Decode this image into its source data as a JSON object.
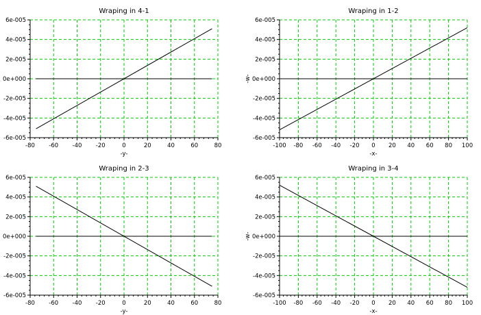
{
  "chart_data": [
    {
      "type": "line",
      "title": "Wraping in 4-1",
      "xlabel": "-y-",
      "ylabel": "",
      "xlim": [
        -80,
        80
      ],
      "ylim": [
        -6e-05,
        6e-05
      ],
      "xticks": [
        -80,
        -60,
        -40,
        -20,
        0,
        20,
        40,
        60,
        80
      ],
      "xtick_labels": [
        "-80",
        "-60",
        "-40",
        "-20",
        "0",
        "20",
        "40",
        "60",
        "80"
      ],
      "yticks": [
        -6e-05,
        -4e-05,
        -2e-05,
        0,
        2e-05,
        4e-05,
        6e-05
      ],
      "ytick_labels": [
        "-6e-005",
        "-4e-005",
        "-2e-005",
        "0e+000",
        "2e-005",
        "4e-005",
        "6e-005"
      ],
      "grid": true,
      "grid_color": "#00cc00",
      "series": [
        {
          "x": [
            -75,
            75
          ],
          "y": [
            -5.1e-05,
            5.1e-05
          ],
          "color": "#000000"
        },
        {
          "x": [
            -75,
            75
          ],
          "y": [
            0,
            0
          ],
          "color": "#000000"
        }
      ]
    },
    {
      "type": "line",
      "title": "Wraping in 1-2",
      "xlabel": "-x-",
      "ylabel": "-w-",
      "xlim": [
        -100,
        100
      ],
      "ylim": [
        -6e-05,
        6e-05
      ],
      "xticks": [
        -100,
        -80,
        -60,
        -40,
        -20,
        0,
        20,
        40,
        60,
        80,
        100
      ],
      "xtick_labels": [
        "-100",
        "-80",
        "-60",
        "-40",
        "-20",
        "0",
        "20",
        "40",
        "60",
        "80",
        "100"
      ],
      "yticks": [
        -6e-05,
        -4e-05,
        -2e-05,
        0,
        2e-05,
        4e-05,
        6e-05
      ],
      "ytick_labels": [
        "-6e-005",
        "-4e-005",
        "-2e-005",
        "0e+000",
        "2e-005",
        "4e-005",
        "6e-005"
      ],
      "grid": true,
      "grid_color": "#00cc00",
      "series": [
        {
          "x": [
            -100,
            100
          ],
          "y": [
            -5.2e-05,
            5.2e-05
          ],
          "color": "#000000"
        },
        {
          "x": [
            -100,
            100
          ],
          "y": [
            0,
            0
          ],
          "color": "#000000"
        }
      ]
    },
    {
      "type": "line",
      "title": "Wraping in 2-3",
      "xlabel": "-y-",
      "ylabel": "",
      "xlim": [
        -80,
        80
      ],
      "ylim": [
        -6e-05,
        6e-05
      ],
      "xticks": [
        -80,
        -60,
        -40,
        -20,
        0,
        20,
        40,
        60,
        80
      ],
      "xtick_labels": [
        "-80",
        "-60",
        "-40",
        "-20",
        "0",
        "20",
        "40",
        "60",
        "80"
      ],
      "yticks": [
        -6e-05,
        -4e-05,
        -2e-05,
        0,
        2e-05,
        4e-05,
        6e-05
      ],
      "ytick_labels": [
        "-6e-005",
        "-4e-005",
        "-2e-005",
        "0e+000",
        "2e-005",
        "4e-005",
        "6e-005"
      ],
      "grid": true,
      "grid_color": "#00cc00",
      "series": [
        {
          "x": [
            -75,
            75
          ],
          "y": [
            5.1e-05,
            -5.1e-05
          ],
          "color": "#000000"
        },
        {
          "x": [
            -75,
            75
          ],
          "y": [
            0,
            0
          ],
          "color": "#000000"
        }
      ]
    },
    {
      "type": "line",
      "title": "Wraping in 3-4",
      "xlabel": "-x-",
      "ylabel": "-w-",
      "xlim": [
        -100,
        100
      ],
      "ylim": [
        -6e-05,
        6e-05
      ],
      "xticks": [
        -100,
        -80,
        -60,
        -40,
        -20,
        0,
        20,
        40,
        60,
        80,
        100
      ],
      "xtick_labels": [
        "-100",
        "-80",
        "-60",
        "-40",
        "-20",
        "0",
        "20",
        "40",
        "60",
        "80",
        "100"
      ],
      "yticks": [
        -6e-05,
        -4e-05,
        -2e-05,
        0,
        2e-05,
        4e-05,
        6e-05
      ],
      "ytick_labels": [
        "-6e-005",
        "-4e-005",
        "-2e-005",
        "0e+000",
        "2e-005",
        "4e-005",
        "6e-005"
      ],
      "grid": true,
      "grid_color": "#00cc00",
      "series": [
        {
          "x": [
            -100,
            100
          ],
          "y": [
            5.2e-05,
            -5.2e-05
          ],
          "color": "#000000"
        },
        {
          "x": [
            -100,
            100
          ],
          "y": [
            0,
            0
          ],
          "color": "#000000"
        }
      ]
    }
  ]
}
